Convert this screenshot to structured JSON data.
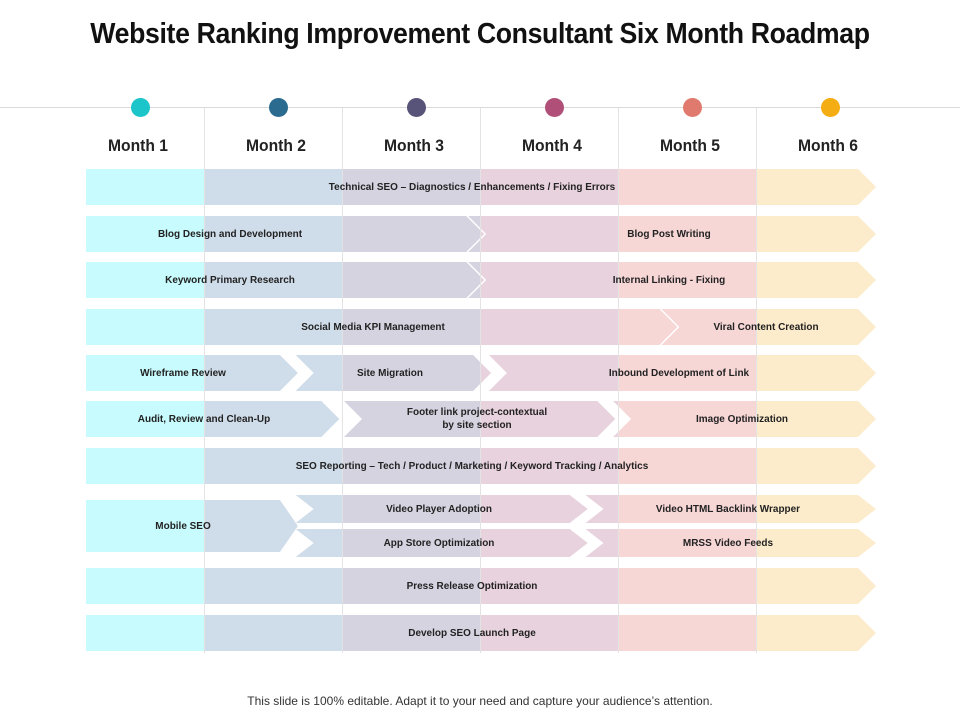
{
  "title": "Website Ranking Improvement Consultant Six Month Roadmap",
  "footer": "This slide is 100% editable. Adapt it to your need and capture your audience’s attention.",
  "months": [
    {
      "label": "Month 1",
      "color": "#1bc5c9",
      "band": "#c8fbfd"
    },
    {
      "label": "Month 2",
      "color": "#2a6b8f",
      "band": "#cfdce9"
    },
    {
      "label": "Month 3",
      "color": "#585378",
      "band": "#d5d3e0"
    },
    {
      "label": "Month 4",
      "color": "#b05078",
      "band": "#e8d2dd"
    },
    {
      "label": "Month 5",
      "color": "#e07a6e",
      "band": "#f7d6d6"
    },
    {
      "label": "Month 6",
      "color": "#f5ad14",
      "band": "#fdeccb"
    }
  ],
  "tasks": [
    {
      "label": "Technical SEO – Diagnostics / Enhancements / Fixing Errors",
      "start": 0,
      "end": 6
    },
    {
      "label": "Blog Design and Development",
      "start": 0,
      "end": 2.9
    },
    {
      "label": "Blog Post Writing",
      "start": 2.9,
      "end": 6
    },
    {
      "label": "Keyword Primary Research",
      "start": 0,
      "end": 2.9
    },
    {
      "label": "Internal Linking - Fixing",
      "start": 2.9,
      "end": 6
    },
    {
      "label": "Social Media KPI Management",
      "start": 0,
      "end": 4.3
    },
    {
      "label": "Viral Content Creation",
      "start": 4.3,
      "end": 6
    },
    {
      "label": "Wireframe Review",
      "start": 0,
      "end": 1.55
    },
    {
      "label": "Site Migration",
      "start": 1.65,
      "end": 2.95
    },
    {
      "label": "Inbound Development of Link",
      "start": 3.05,
      "end": 6
    },
    {
      "label": "Audit, Review and Clean-Up",
      "start": 0,
      "end": 1.85
    },
    {
      "label": "Footer link project-contextual\nby site section",
      "start": 2.0,
      "end": 3.85
    },
    {
      "label": "Image Optimization",
      "start": 3.95,
      "end": 6
    },
    {
      "label": "SEO Reporting – Tech / Product / Marketing / Keyword Tracking / Analytics",
      "start": 0,
      "end": 6
    },
    {
      "label": "Mobile SEO",
      "start": 0,
      "end": 1.55
    },
    {
      "label": "Video Player Adoption",
      "start": 1.65,
      "end": 3.65
    },
    {
      "label": "App Store Optimization",
      "start": 1.65,
      "end": 3.65
    },
    {
      "label": "Video HTML Backlink Wrapper",
      "start": 3.75,
      "end": 6
    },
    {
      "label": "MRSS Video Feeds",
      "start": 3.75,
      "end": 6
    },
    {
      "label": "Press Release Optimization",
      "start": 0,
      "end": 6
    },
    {
      "label": "Develop SEO Launch Page",
      "start": 0,
      "end": 6
    }
  ]
}
